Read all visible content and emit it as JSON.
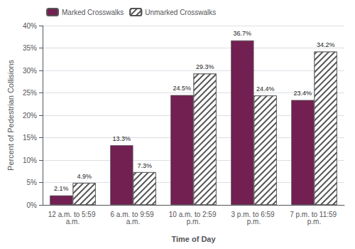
{
  "chart_data": {
    "type": "bar",
    "categories": [
      "12 a.m. to 5:59 a.m.",
      "6 a.m. to 9:59 a.m.",
      "10 a.m. to 2:59 p.m.",
      "3 p.m. to 6:59 p.m.",
      "7 p.m. to 11:59 p.m."
    ],
    "series": [
      {
        "name": "Marked Crosswalks",
        "color": "#722052",
        "values": [
          2.1,
          13.3,
          24.5,
          36.7,
          23.4
        ],
        "value_labels": [
          "2.1%",
          "13.3%",
          "24.5%",
          "36.7%",
          "23.4%"
        ]
      },
      {
        "name": "Unmarked Crosswalks",
        "color": "#ffffff",
        "values": [
          4.9,
          7.3,
          29.3,
          24.4,
          34.2
        ],
        "value_labels": [
          "4.9%",
          "7.3%",
          "29.3%",
          "24.4%",
          "34.2%"
        ]
      }
    ],
    "xlabel": "Time of Day",
    "ylabel": "Percent of Pedestrian Collisions",
    "ylim": [
      0,
      40
    ],
    "yticks": [
      {
        "value": 0,
        "label": "0%"
      },
      {
        "value": 5,
        "label": "5%"
      },
      {
        "value": 10,
        "label": "10%"
      },
      {
        "value": 15,
        "label": "15%"
      },
      {
        "value": 20,
        "label": "20%"
      },
      {
        "value": 25,
        "label": "25%"
      },
      {
        "value": 30,
        "label": "30%"
      },
      {
        "value": 35,
        "label": "35%"
      },
      {
        "value": 40,
        "label": "40%"
      }
    ],
    "grid": true,
    "legend": "upper left",
    "data_labels": true
  }
}
